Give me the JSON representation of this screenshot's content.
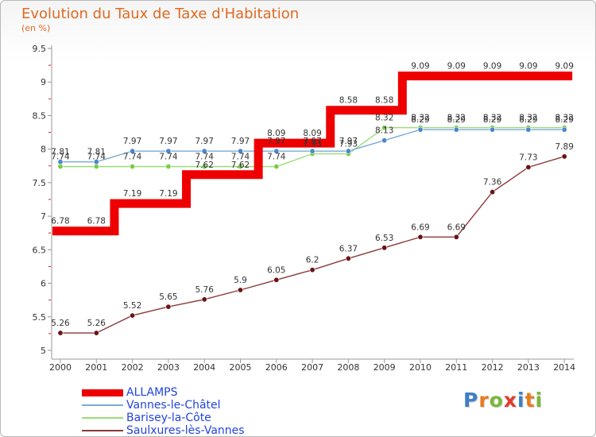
{
  "header": {
    "title": "Evolution du Taux de Taxe d'Habitation",
    "subtitle": "(en %)"
  },
  "logo": {
    "letters": [
      {
        "char": "P",
        "color": "#3d7fc5"
      },
      {
        "char": "r",
        "color": "#e87b1d"
      },
      {
        "char": "o",
        "color": "#7bb83a"
      },
      {
        "char": "x",
        "color": "#e23b2e"
      },
      {
        "char": "i",
        "color": "#3d7fc5"
      },
      {
        "char": "t",
        "color": "#e87b1d"
      },
      {
        "char": "i",
        "color": "#7bb83a"
      }
    ]
  },
  "chart_data": {
    "type": "line",
    "title": "Evolution du Taux de Taxe d'Habitation",
    "ylabel": "(en %)",
    "xlabel": "",
    "x": [
      "2000",
      "2001",
      "2002",
      "2003",
      "2004",
      "2005",
      "2006",
      "2007",
      "2008",
      "2009",
      "2010",
      "2011",
      "2012",
      "2013",
      "2014"
    ],
    "ylim": [
      5,
      9.5
    ],
    "yticks": [
      "5",
      "5.5",
      "6",
      "6.5",
      "7",
      "7.5",
      "8",
      "8.5",
      "9",
      "9.5"
    ],
    "grid": false,
    "legend_position": "bottom-left",
    "series": [
      {
        "name": "ALLAMPS",
        "style": "step",
        "color": "#ee0000",
        "markers": false,
        "values": [
          6.78,
          6.78,
          7.19,
          7.19,
          7.62,
          7.62,
          8.09,
          8.09,
          8.58,
          8.58,
          9.09,
          9.09,
          9.09,
          9.09,
          9.09
        ],
        "labels": [
          "6.78",
          "6.78",
          "7.19",
          "7.19",
          "7.62",
          "7.62",
          "8.09",
          "8.09",
          "8.58",
          "8.58",
          "9.09",
          "9.09",
          "9.09",
          "9.09",
          "9.09"
        ]
      },
      {
        "name": "Vannes-le-Châtel",
        "style": "line",
        "color": "#7aaad8",
        "marker_color": "#4a88cc",
        "values": [
          7.81,
          7.81,
          7.97,
          7.97,
          7.97,
          7.97,
          7.97,
          7.97,
          7.97,
          8.13,
          8.29,
          8.29,
          8.29,
          8.29,
          8.29
        ],
        "labels": [
          "7.81",
          "7.81",
          "7.97",
          "7.97",
          "7.97",
          "7.97",
          "7.97",
          "7.97",
          "7.97",
          "8.13",
          "8.29",
          "8.29",
          "8.29",
          "8.29",
          "8.29"
        ]
      },
      {
        "name": "Barisey-la-Côte",
        "style": "line",
        "color": "#99dd77",
        "marker_color": "#77cc44",
        "values": [
          7.74,
          7.74,
          7.74,
          7.74,
          7.74,
          7.74,
          7.74,
          7.93,
          7.93,
          8.32,
          8.32,
          8.32,
          8.32,
          8.32,
          8.32
        ],
        "labels": [
          "7.74",
          "7.74",
          "7.74",
          "7.74",
          "7.74",
          "7.74",
          "7.74",
          "7.93",
          "7.93",
          "8.32",
          "8.32",
          "8.32",
          "8.32",
          "8.32",
          "8.32"
        ]
      },
      {
        "name": "Saulxures-lès-Vannes",
        "style": "line",
        "color": "#8a3a3a",
        "marker_color": "#6a1414",
        "values": [
          5.26,
          5.26,
          5.52,
          5.65,
          5.76,
          5.9,
          6.05,
          6.2,
          6.37,
          6.53,
          6.69,
          6.69,
          7.36,
          7.73,
          7.89
        ],
        "labels": [
          "5.26",
          "5.26",
          "5.52",
          "5.65",
          "5.76",
          "5.9",
          "6.05",
          "6.2",
          "6.37",
          "6.53",
          "6.69",
          "6.69",
          "7.36",
          "7.73",
          "7.89"
        ]
      }
    ]
  }
}
